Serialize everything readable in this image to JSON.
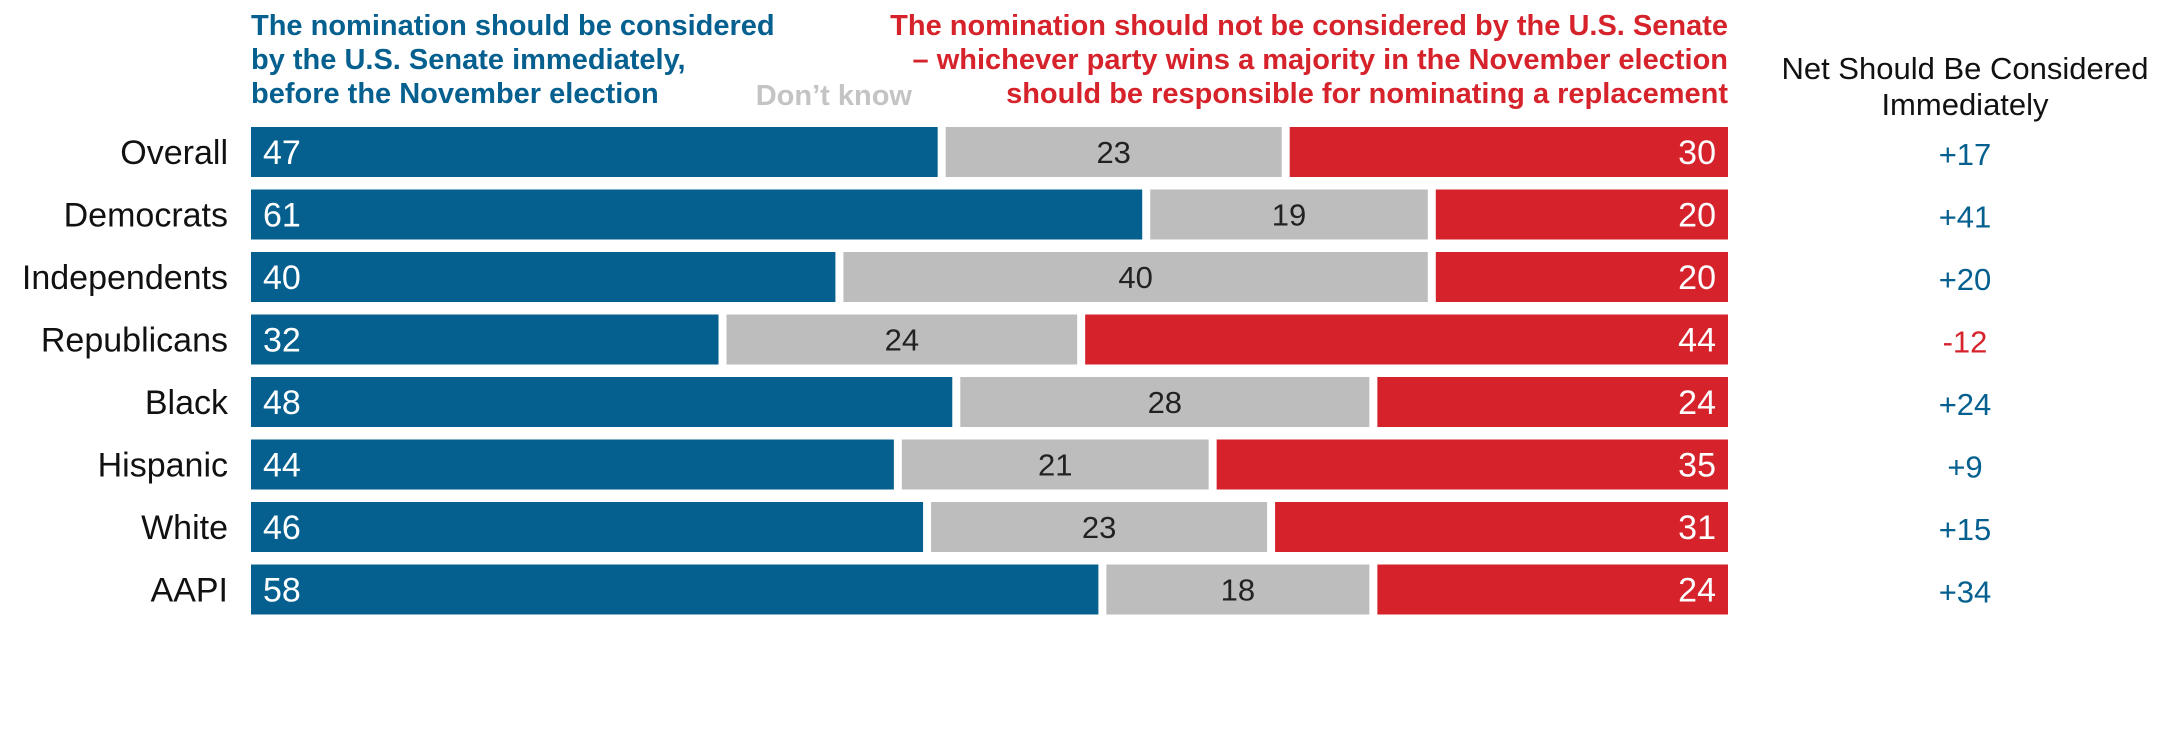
{
  "colors": {
    "considered": "#05608f",
    "dont_know": "#bdbdbd",
    "not_considered": "#d6232b",
    "dont_know_label": "#c4c4c4",
    "net_positive": "#05608f",
    "net_negative": "#d6232b"
  },
  "legend": {
    "considered_lines": [
      "The nomination should be considered",
      "by the U.S. Senate immediately,",
      "before the November election"
    ],
    "dont_know": "Don’t know",
    "not_considered_lines": [
      "The nomination should not be considered by the U.S. Senate",
      "– whichever party wins a majority in the November election",
      "should be responsible for nominating a replacement"
    ],
    "net_header_lines": [
      "Net Should Be Considered",
      "Immediately"
    ]
  },
  "chart_data": {
    "type": "bar",
    "orientation": "horizontal",
    "stacked": "100%",
    "categories": [
      "Overall",
      "Democrats",
      "Independents",
      "Republicans",
      "Black",
      "Hispanic",
      "White",
      "AAPI"
    ],
    "groups": [
      [
        "Overall"
      ],
      [
        "Democrats",
        "Independents",
        "Republicans"
      ],
      [
        "Black",
        "Hispanic",
        "White",
        "AAPI"
      ]
    ],
    "series": [
      {
        "name": "The nomination should be considered by the U.S. Senate immediately, before the November election",
        "values": [
          47,
          61,
          40,
          32,
          48,
          44,
          46,
          58
        ]
      },
      {
        "name": "Don’t know",
        "values": [
          23,
          19,
          40,
          24,
          28,
          21,
          23,
          18
        ]
      },
      {
        "name": "The nomination should not be considered by the U.S. Senate – whichever party wins a majority in the November election should be responsible for nominating a replacement",
        "values": [
          30,
          20,
          20,
          44,
          24,
          35,
          31,
          24
        ]
      }
    ],
    "net": [
      "+17",
      "+41",
      "+20",
      "-12",
      "+24",
      "+9",
      "+15",
      "+34"
    ],
    "net_header": "Net Should Be Considered Immediately",
    "xlim": [
      0,
      100
    ],
    "grid": false
  }
}
